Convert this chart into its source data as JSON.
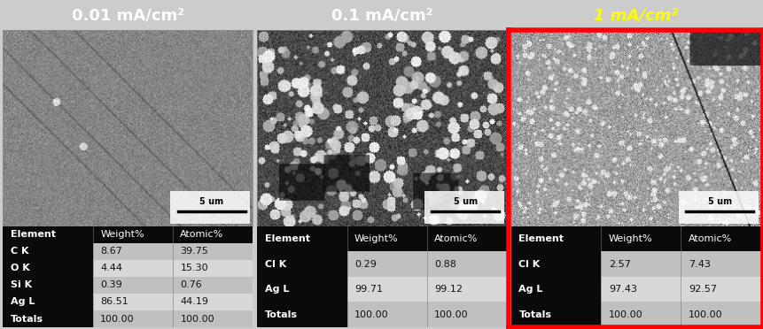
{
  "panels": [
    {
      "title": "0.01 mA/cm²",
      "title_color": "white",
      "title_style": "normal",
      "highlight": false,
      "table_headers": [
        "Element",
        "Weight%",
        "Atomic%"
      ],
      "table_rows": [
        [
          "C K",
          "8.67",
          "39.75"
        ],
        [
          "O K",
          "4.44",
          "15.30"
        ],
        [
          "Si K",
          "0.39",
          "0.76"
        ],
        [
          "Ag L",
          "86.51",
          "44.19"
        ],
        [
          "Totals",
          "100.00",
          "100.00"
        ]
      ]
    },
    {
      "title": "0.1 mA/cm²",
      "title_color": "white",
      "title_style": "normal",
      "highlight": false,
      "table_headers": [
        "Element",
        "Weight%",
        "Atomic%"
      ],
      "table_rows": [
        [
          "Cl K",
          "0.29",
          "0.88"
        ],
        [
          "Ag L",
          "99.71",
          "99.12"
        ],
        [
          "Totals",
          "100.00",
          "100.00"
        ]
      ]
    },
    {
      "title": "1 mA/cm²",
      "title_color": "#FFFF00",
      "title_style": "italic",
      "highlight": true,
      "table_headers": [
        "Element",
        "Weight%",
        "Atomic%"
      ],
      "table_rows": [
        [
          "Cl K",
          "2.57",
          "7.43"
        ],
        [
          "Ag L",
          "97.43",
          "92.57"
        ],
        [
          "Totals",
          "100.00",
          "100.00"
        ]
      ]
    }
  ],
  "header_bg": "#4a6fa0",
  "fig_bg": "#cccccc",
  "table_header_bg": "#0a0a0a",
  "table_header_fg": "#ffffff",
  "elem_col_bg": "#0a0a0a",
  "elem_col_fg": "#ffffff",
  "data_col_bg_1": "#c0c0c0",
  "data_col_bg_2": "#d8d8d8",
  "data_col_fg": "#111111",
  "highlight_color": "#FF0000",
  "highlight_lw": 4,
  "scale_bar": "5 um",
  "title_fontsize": 13,
  "table_fontsize": 8
}
